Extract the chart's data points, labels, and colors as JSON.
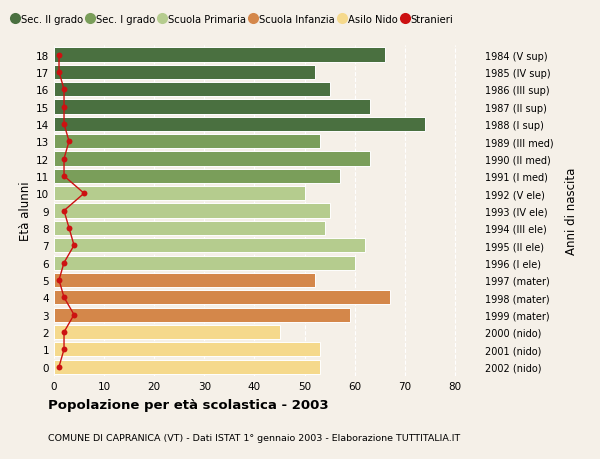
{
  "ages": [
    18,
    17,
    16,
    15,
    14,
    13,
    12,
    11,
    10,
    9,
    8,
    7,
    6,
    5,
    4,
    3,
    2,
    1,
    0
  ],
  "years": [
    "1984 (V sup)",
    "1985 (IV sup)",
    "1986 (III sup)",
    "1987 (II sup)",
    "1988 (I sup)",
    "1989 (III med)",
    "1990 (II med)",
    "1991 (I med)",
    "1992 (V ele)",
    "1993 (IV ele)",
    "1994 (III ele)",
    "1995 (II ele)",
    "1996 (I ele)",
    "1997 (mater)",
    "1998 (mater)",
    "1999 (mater)",
    "2000 (nido)",
    "2001 (nido)",
    "2002 (nido)"
  ],
  "bar_values": [
    66,
    52,
    55,
    63,
    74,
    53,
    63,
    57,
    50,
    55,
    54,
    62,
    60,
    52,
    67,
    59,
    45,
    53,
    53
  ],
  "stranieri": [
    1,
    1,
    2,
    2,
    2,
    3,
    2,
    2,
    6,
    2,
    3,
    4,
    2,
    1,
    2,
    4,
    2,
    2,
    1
  ],
  "bar_colors": [
    "#4a7040",
    "#4a7040",
    "#4a7040",
    "#4a7040",
    "#4a7040",
    "#7a9e5a",
    "#7a9e5a",
    "#7a9e5a",
    "#b5cc8e",
    "#b5cc8e",
    "#b5cc8e",
    "#b5cc8e",
    "#b5cc8e",
    "#d4874a",
    "#d4874a",
    "#d4874a",
    "#f5d98c",
    "#f5d98c",
    "#f5d98c"
  ],
  "legend_labels": [
    "Sec. II grado",
    "Sec. I grado",
    "Scuola Primaria",
    "Scuola Infanzia",
    "Asilo Nido",
    "Stranieri"
  ],
  "legend_colors": [
    "#4a7040",
    "#7a9e5a",
    "#b5cc8e",
    "#d4874a",
    "#f5d98c",
    "#cc1111"
  ],
  "ylabel_left": "Età alunni",
  "ylabel_right": "Anni di nascita",
  "title_bold": "Popolazione per età scolastica - 2003",
  "subtitle": "COMUNE DI CAPRANICA (VT) - Dati ISTAT 1° gennaio 2003 - Elaborazione TUTTITALIA.IT",
  "xlim": [
    0,
    85
  ],
  "bg_color": "#f5f0e8",
  "stranieri_color": "#cc1111",
  "grid_color": "#ffffff"
}
